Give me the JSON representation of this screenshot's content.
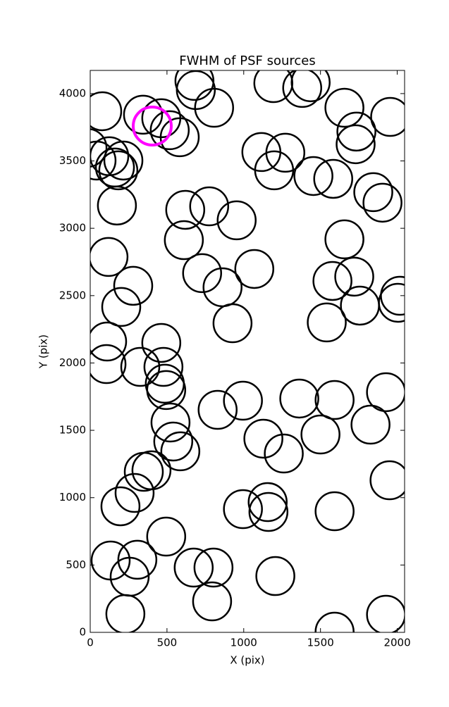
{
  "chart_data": {
    "type": "scatter",
    "title": "FWHM of PSF sources",
    "xlabel": "X (pix)",
    "ylabel": "Y (pix)",
    "xlim": [
      0,
      2048
    ],
    "ylim": [
      0,
      4172
    ],
    "xticks": [
      0,
      500,
      1000,
      1500,
      2000
    ],
    "yticks": [
      0,
      500,
      1000,
      1500,
      2000,
      2500,
      3000,
      3500,
      4000
    ],
    "series": [
      {
        "color": "#000000",
        "x": [
          78,
          344,
          463,
          518,
          583,
          679,
          688,
          807,
          1193,
          1381,
          1436,
          1656,
          1734,
          1729,
          1954,
          -18,
          41,
          124,
          216,
          161,
          183,
          174,
          1115,
          1271,
          1198,
          1454,
          1583,
          1844,
          1904,
          619,
          775,
          954,
          610,
          1656,
          119,
          729,
          1069,
          862,
          280,
          202,
          1578,
          1720,
          1757,
          2005,
          2018,
          927,
          1541,
          110,
          463,
          477,
          326,
          106,
          486,
          495,
          830,
          995,
          1362,
          1592,
          1927,
          523,
          541,
          587,
          1128,
          1261,
          1500,
          1826,
          349,
          399,
          289,
          197,
          1156,
          1161,
          995,
          1592,
          1950,
          495,
          133,
          307,
          257,
          674,
          803,
          1206,
          794,
          229,
          1927,
          1592
        ],
        "values": [
          3869,
          3843,
          3817,
          3728,
          3676,
          4094,
          4026,
          3895,
          4078,
          4042,
          4084,
          3895,
          3718,
          3624,
          3827,
          3597,
          3503,
          3535,
          3503,
          3451,
          3430,
          3169,
          3566,
          3561,
          3430,
          3388,
          3367,
          3268,
          3190,
          3137,
          3163,
          3059,
          2912,
          2918,
          2787,
          2667,
          2698,
          2562,
          2573,
          2416,
          2609,
          2641,
          2426,
          2447,
          2499,
          2295,
          2301,
          2159,
          2149,
          1971,
          1971,
          1992,
          1846,
          1799,
          1652,
          1720,
          1736,
          1725,
          1783,
          1558,
          1417,
          1344,
          1438,
          1328,
          1469,
          1542,
          1192,
          1203,
          1035,
          936,
          967,
          894,
          915,
          899,
          1129,
          711,
          533,
          539,
          413,
          481,
          481,
          418,
          230,
          136,
          131,
          5
        ]
      },
      {
        "color": "#ff00ff",
        "x": [
          404
        ],
        "values": [
          3759
        ]
      }
    ]
  }
}
